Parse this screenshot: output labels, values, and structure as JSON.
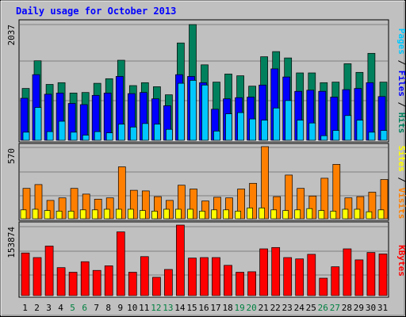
{
  "title": "Daily usage for October 2013",
  "colors": {
    "hits": "#00805c",
    "files": "#0000ff",
    "pages": "#00c8ff",
    "visits": "#ff8000",
    "sites": "#ffff00",
    "kbytes": "#ff0000",
    "title": "#0000ff",
    "weekend": "#008040",
    "weekday": "#000000",
    "panel": "#c0c0c0"
  },
  "chart_data": [
    {
      "type": "bar",
      "panel": "top",
      "ymax_label": "2037",
      "ymax": 2037,
      "legend": [
        "Pages",
        "Files",
        "Hits"
      ],
      "categories": [
        "1",
        "2",
        "3",
        "4",
        "5",
        "6",
        "7",
        "8",
        "9",
        "10",
        "11",
        "12",
        "13",
        "14",
        "15",
        "16",
        "17",
        "18",
        "19",
        "20",
        "21",
        "22",
        "23",
        "24",
        "25",
        "26",
        "27",
        "28",
        "29",
        "30",
        "31"
      ],
      "weekend_days": [
        5,
        6,
        12,
        13,
        19,
        20,
        26,
        27
      ],
      "series": [
        {
          "name": "Hits",
          "values": [
            900,
            1380,
            970,
            1000,
            820,
            830,
            990,
            1070,
            1390,
            950,
            1000,
            930,
            790,
            1690,
            2010,
            1310,
            1010,
            1150,
            1120,
            940,
            1450,
            1540,
            1430,
            1170,
            1170,
            1000,
            1010,
            1330,
            1180,
            1510,
            1010
          ]
        },
        {
          "name": "Files",
          "values": [
            730,
            1140,
            800,
            820,
            640,
            620,
            780,
            820,
            1110,
            810,
            830,
            720,
            600,
            1140,
            1110,
            1000,
            540,
            720,
            740,
            750,
            960,
            1240,
            1100,
            850,
            870,
            850,
            750,
            880,
            900,
            1000,
            760
          ]
        },
        {
          "name": "Pages",
          "values": [
            140,
            570,
            150,
            330,
            140,
            90,
            150,
            130,
            280,
            230,
            290,
            280,
            190,
            990,
            1040,
            960,
            160,
            460,
            480,
            370,
            350,
            560,
            690,
            350,
            300,
            80,
            170,
            430,
            350,
            140,
            170
          ]
        }
      ]
    },
    {
      "type": "bar",
      "panel": "middle",
      "ymax_label": "570",
      "ymax": 570,
      "legend": [
        "Sites",
        "Visits"
      ],
      "categories": [
        "1",
        "2",
        "3",
        "4",
        "5",
        "6",
        "7",
        "8",
        "9",
        "10",
        "11",
        "12",
        "13",
        "14",
        "15",
        "16",
        "17",
        "18",
        "19",
        "20",
        "21",
        "22",
        "23",
        "24",
        "25",
        "26",
        "27",
        "28",
        "29",
        "30",
        "31"
      ],
      "series": [
        {
          "name": "Visits",
          "values": [
            240,
            270,
            145,
            165,
            240,
            195,
            155,
            165,
            410,
            225,
            220,
            175,
            145,
            265,
            235,
            140,
            170,
            165,
            235,
            280,
            570,
            175,
            345,
            240,
            180,
            320,
            430,
            165,
            175,
            210,
            310
          ]
        },
        {
          "name": "Sites",
          "values": [
            70,
            75,
            65,
            60,
            60,
            70,
            70,
            75,
            75,
            75,
            65,
            60,
            75,
            75,
            75,
            60,
            70,
            70,
            60,
            85,
            85,
            70,
            65,
            70,
            80,
            65,
            60,
            75,
            75,
            55,
            70
          ]
        }
      ]
    },
    {
      "type": "bar",
      "panel": "bottom",
      "ymax_label": "153874",
      "ymax": 153874,
      "legend": [
        "KBytes"
      ],
      "categories": [
        "1",
        "2",
        "3",
        "4",
        "5",
        "6",
        "7",
        "8",
        "9",
        "10",
        "11",
        "12",
        "13",
        "14",
        "15",
        "16",
        "17",
        "18",
        "19",
        "20",
        "21",
        "22",
        "23",
        "24",
        "25",
        "26",
        "27",
        "28",
        "29",
        "30",
        "31"
      ],
      "series": [
        {
          "name": "KBytes",
          "values": [
            93000,
            83000,
            108000,
            61000,
            51000,
            74000,
            55000,
            65000,
            139000,
            51000,
            85000,
            40000,
            57000,
            153874,
            82000,
            83000,
            83000,
            66000,
            51000,
            52000,
            102000,
            105000,
            83000,
            80000,
            90000,
            38000,
            63000,
            102000,
            78000,
            94000,
            91000
          ]
        }
      ]
    }
  ]
}
